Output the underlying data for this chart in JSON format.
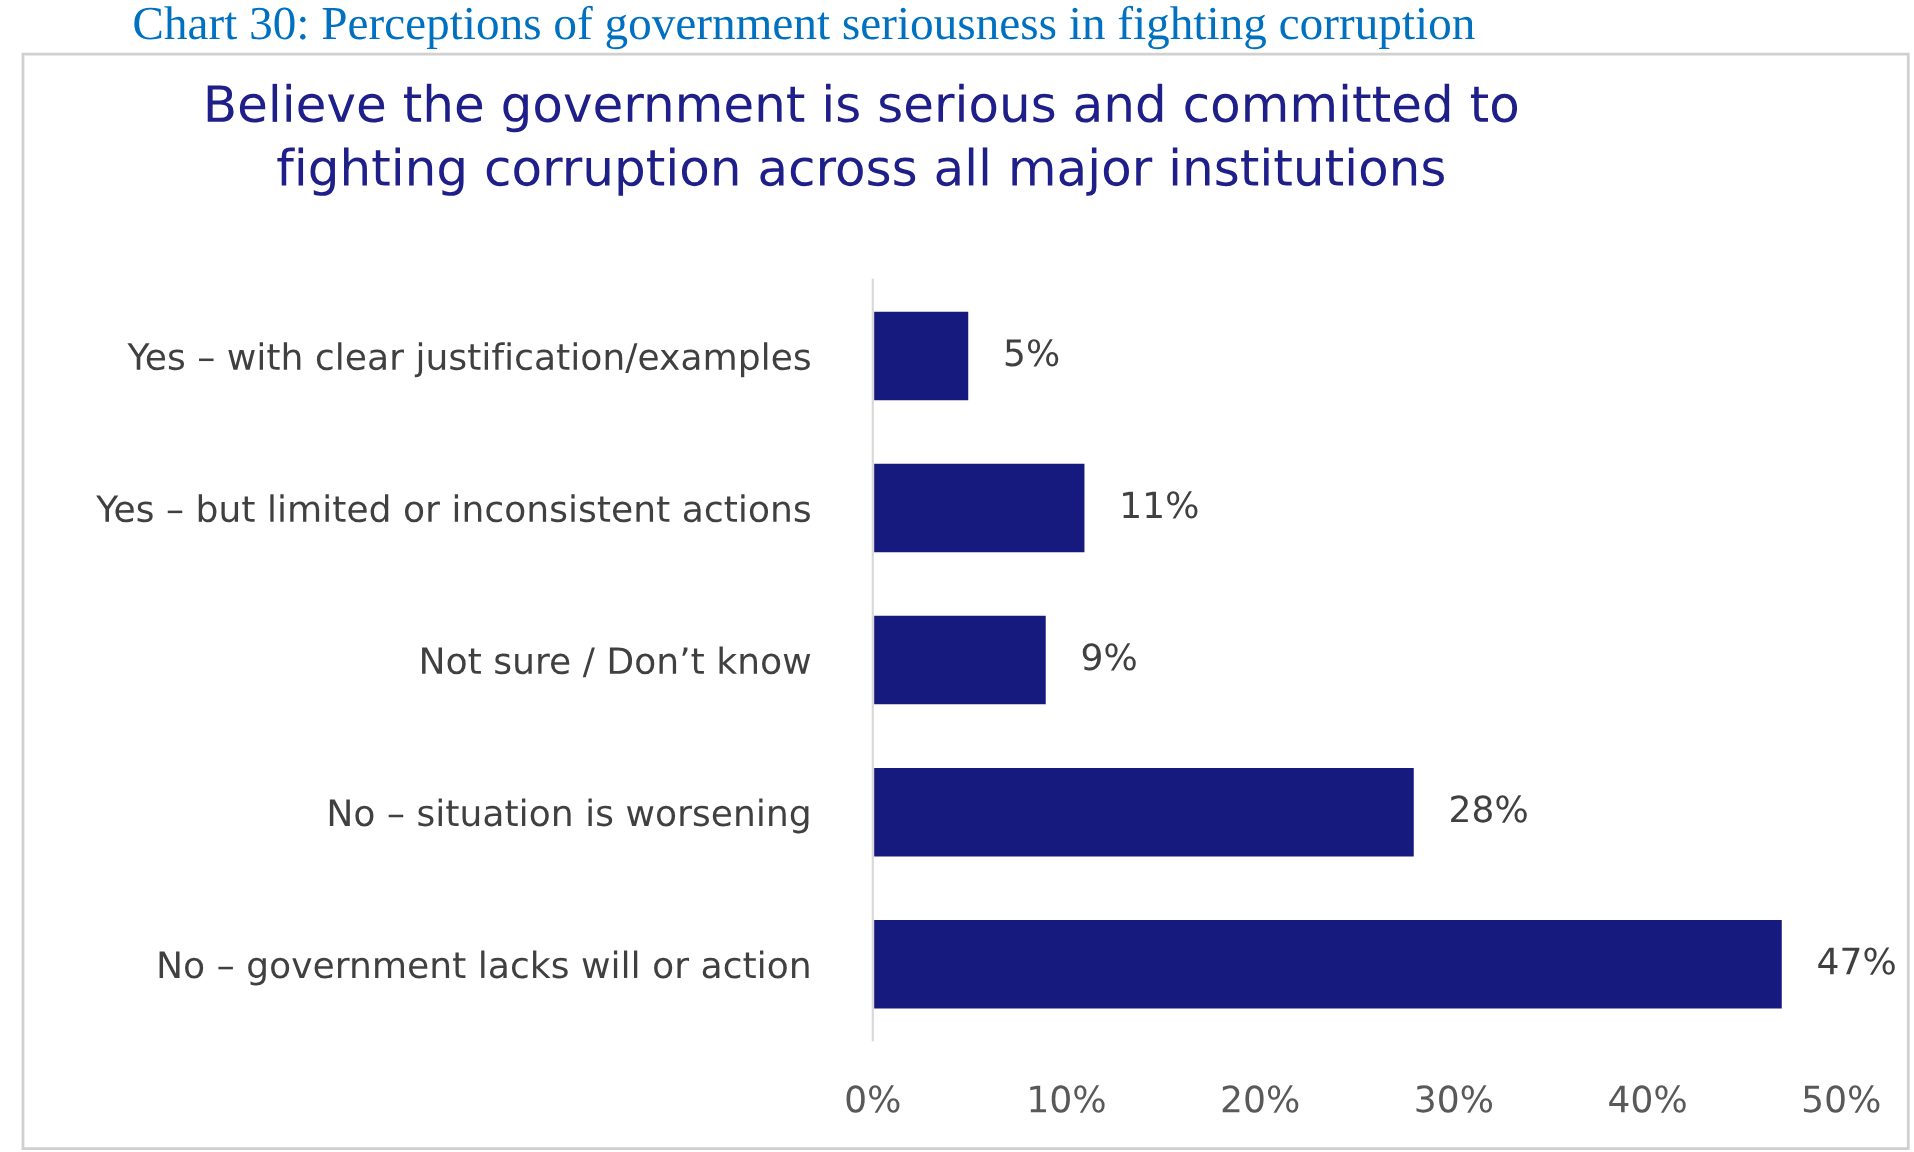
{
  "chart_data": {
    "type": "bar",
    "orientation": "horizontal",
    "title": "Believe the government is serious and committed to\nfighting corruption across all major institutions",
    "annotations": [
      "Chart 30: Perceptions of government seriousness in fighting corruption"
    ],
    "categories": [
      "Yes – with clear justification/examples",
      "Yes – but limited or inconsistent actions",
      "Not sure / Don’t know",
      "No – situation is worsening",
      "No – government lacks will or action"
    ],
    "values": [
      5,
      11,
      9,
      28,
      47
    ],
    "color": "#161a7e",
    "value_labels": [
      "5%",
      "11%",
      "9%",
      "28%",
      "47%"
    ],
    "xlim": [
      0,
      50
    ],
    "xticks": [
      {
        "value": 0,
        "label": "0%"
      },
      {
        "value": 10,
        "label": "10%"
      },
      {
        "value": 20,
        "label": "20%"
      },
      {
        "value": 30,
        "label": "30%"
      },
      {
        "value": 40,
        "label": "40%"
      },
      {
        "value": 50,
        "label": "50%"
      }
    ],
    "grid": false
  }
}
